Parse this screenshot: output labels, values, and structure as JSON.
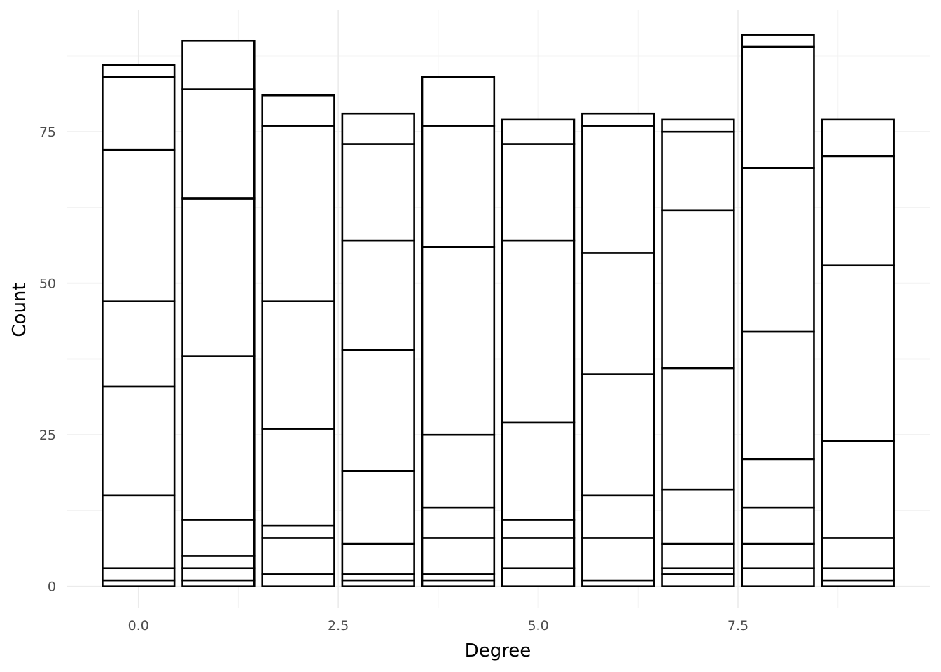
{
  "chart_data": {
    "type": "bar",
    "stacked": true,
    "title": "",
    "xlabel": "Degree",
    "ylabel": "Count",
    "xlim": [
      -0.9,
      9.9
    ],
    "ylim": [
      -3.5,
      95
    ],
    "x_ticks": [
      0.0,
      2.5,
      5.0,
      7.5
    ],
    "x_tick_labels": [
      "0.0",
      "2.5",
      "5.0",
      "7.5"
    ],
    "y_ticks": [
      0,
      25,
      50,
      75
    ],
    "y_tick_labels": [
      "0",
      "25",
      "50",
      "75"
    ],
    "grid": true,
    "legend": "none",
    "colors": {
      "fill": "#ffffff",
      "outline": "#000000",
      "grid": "#ebebeb"
    },
    "x": [
      0,
      1,
      2,
      3,
      4,
      5,
      6,
      7,
      8,
      9
    ],
    "stack_boundaries": [
      [
        1,
        3,
        15,
        33,
        47,
        72,
        84,
        86
      ],
      [
        1,
        3,
        5,
        11,
        38,
        64,
        82,
        90
      ],
      [
        2,
        8,
        10,
        26,
        47,
        76,
        81
      ],
      [
        1,
        2,
        7,
        19,
        39,
        57,
        73,
        78
      ],
      [
        1,
        2,
        8,
        13,
        25,
        56,
        76,
        84
      ],
      [
        3,
        8,
        11,
        27,
        57,
        73,
        77
      ],
      [
        1,
        8,
        15,
        35,
        55,
        76,
        78
      ],
      [
        2,
        3,
        7,
        16,
        36,
        62,
        75,
        77
      ],
      [
        3,
        7,
        13,
        21,
        42,
        69,
        89,
        91
      ],
      [
        1,
        3,
        8,
        24,
        53,
        71,
        77
      ]
    ],
    "totals": [
      86,
      90,
      81,
      78,
      84,
      77,
      78,
      77,
      91,
      77
    ]
  }
}
